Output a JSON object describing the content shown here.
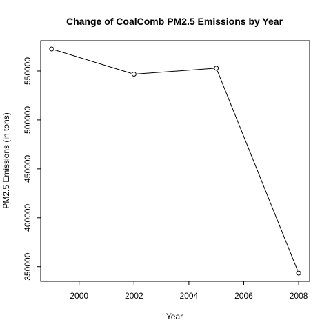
{
  "chart_data": {
    "type": "line",
    "title": "Change of CoalComb PM2.5 Emissions by Year",
    "xlabel": "Year",
    "ylabel": "PM2.5 Emissions (in tons)",
    "x": [
      1999,
      2002,
      2005,
      2008
    ],
    "y": [
      572500,
      546800,
      552900,
      343400
    ],
    "xlim": [
      1998.6,
      2008.4
    ],
    "ylim": [
      335000,
      581000
    ],
    "x_ticks": [
      2000,
      2002,
      2004,
      2006,
      2008
    ],
    "y_ticks": [
      350000,
      400000,
      450000,
      500000,
      550000
    ],
    "x_tick_labels": [
      "2000",
      "2002",
      "2004",
      "2006",
      "2008"
    ],
    "y_tick_labels": [
      "350000",
      "400000",
      "450000",
      "500000",
      "550000"
    ],
    "grid": false,
    "legend": "none",
    "colors": {
      "line": "#000000",
      "marker_fill": "#ffffff",
      "marker_stroke": "#000000",
      "frame": "#000000",
      "text": "#000000",
      "background": "#ffffff"
    }
  }
}
